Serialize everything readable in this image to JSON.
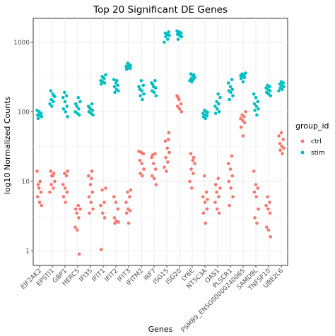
{
  "chart_data": {
    "type": "scatter",
    "title": "Top 20 Significant DE Genes",
    "xlabel": "Genes",
    "ylabel": "log10 Normalized Counts",
    "yscale": "log10",
    "ylim": [
      0.62,
      2200
    ],
    "yticks": [
      {
        "value": 1,
        "label": "1"
      },
      {
        "value": 10,
        "label": "10"
      },
      {
        "value": 100,
        "label": "100"
      },
      {
        "value": 1000,
        "label": "1000"
      }
    ],
    "grid": true,
    "legend": {
      "title": "group_id",
      "placement": "right"
    },
    "categories": [
      "EIF2AK2",
      "EPSTI1",
      "GBP1",
      "HERC5",
      "IFI35",
      "IFIT1",
      "IFIT2",
      "IFIT3",
      "IFITM2",
      "IRF7",
      "ISG15",
      "ISG20",
      "LY6E",
      "NT5C3A",
      "OAS1",
      "PLSCR1",
      "PSMB9_ENSG00000240065",
      "SAMD9L",
      "TNFSF10",
      "UBE2L6"
    ],
    "series": [
      {
        "name": "ctrl",
        "color": "#F8766D",
        "values": [
          [
            14,
            8,
            7,
            6,
            5,
            4.5,
            9,
            10
          ],
          [
            14,
            12,
            10,
            9,
            8,
            7,
            12,
            13
          ],
          [
            13,
            12,
            9,
            8,
            7,
            6,
            5,
            14
          ],
          [
            4.5,
            4,
            3.5,
            3,
            2.2,
            2,
            0.9,
            4
          ],
          [
            14,
            12,
            9,
            7,
            6,
            5,
            4,
            3.5,
            11
          ],
          [
            8,
            7.5,
            5,
            4.5,
            3.5,
            3,
            1.05
          ],
          [
            6,
            5,
            4,
            3,
            2.7,
            2.6,
            2.5
          ],
          [
            7,
            6,
            5,
            4,
            3.8,
            3.5,
            2.5,
            7.5
          ],
          [
            26,
            25,
            20,
            18,
            15,
            13,
            12,
            27
          ],
          [
            25,
            22,
            18,
            15,
            12,
            11,
            9,
            24
          ],
          [
            50,
            38,
            30,
            26,
            22,
            19,
            16,
            14,
            40
          ],
          [
            170,
            150,
            130,
            120,
            110,
            100,
            160
          ],
          [
            25,
            20,
            18,
            15,
            13,
            10,
            8,
            22
          ],
          [
            12,
            7,
            6,
            5,
            4,
            3.5,
            2.5,
            5.5
          ],
          [
            11,
            8,
            7,
            6,
            5,
            4,
            3.5,
            9
          ],
          [
            23,
            18,
            15,
            12,
            10,
            8,
            6,
            4.5
          ],
          [
            100,
            90,
            85,
            80,
            75,
            70,
            60,
            45
          ],
          [
            14,
            9,
            8,
            7,
            6,
            4,
            3,
            2.5
          ],
          [
            6,
            5,
            4.5,
            4,
            3.5,
            2.2,
            2,
            1.6
          ],
          [
            50,
            40,
            35,
            32,
            30,
            28,
            25,
            45
          ]
        ]
      },
      {
        "name": "stim",
        "color": "#00BFC4",
        "values": [
          [
            105,
            100,
            95,
            90,
            88,
            85,
            80,
            92
          ],
          [
            200,
            180,
            165,
            150,
            140,
            130,
            120,
            170
          ],
          [
            190,
            170,
            160,
            140,
            120,
            110,
            100,
            85
          ],
          [
            160,
            140,
            120,
            110,
            100,
            95,
            90,
            130
          ],
          [
            130,
            120,
            110,
            105,
            100,
            95,
            90,
            115
          ],
          [
            340,
            320,
            300,
            280,
            270,
            260,
            250,
            310
          ],
          [
            290,
            260,
            240,
            230,
            210,
            200,
            190,
            280
          ],
          [
            500,
            470,
            450,
            430,
            420,
            410,
            480,
            460
          ],
          [
            280,
            240,
            210,
            200,
            180,
            170,
            150,
            230
          ],
          [
            280,
            260,
            230,
            220,
            200,
            190,
            170,
            250
          ],
          [
            1400,
            1350,
            1300,
            1250,
            1200,
            1100,
            1000,
            1320
          ],
          [
            1450,
            1400,
            1350,
            1300,
            1250,
            1200,
            1100,
            1380
          ],
          [
            350,
            330,
            310,
            300,
            290,
            280,
            270,
            340
          ],
          [
            105,
            100,
            95,
            90,
            88,
            85,
            80,
            98
          ],
          [
            180,
            160,
            140,
            130,
            120,
            110,
            100,
            95
          ],
          [
            290,
            260,
            230,
            210,
            200,
            190,
            170,
            150
          ],
          [
            360,
            350,
            340,
            330,
            320,
            310,
            300,
            270
          ],
          [
            180,
            160,
            140,
            130,
            120,
            110,
            105,
            90
          ],
          [
            240,
            230,
            220,
            210,
            200,
            190,
            180,
            170
          ],
          [
            270,
            260,
            250,
            240,
            230,
            220,
            210,
            200
          ]
        ]
      }
    ]
  }
}
